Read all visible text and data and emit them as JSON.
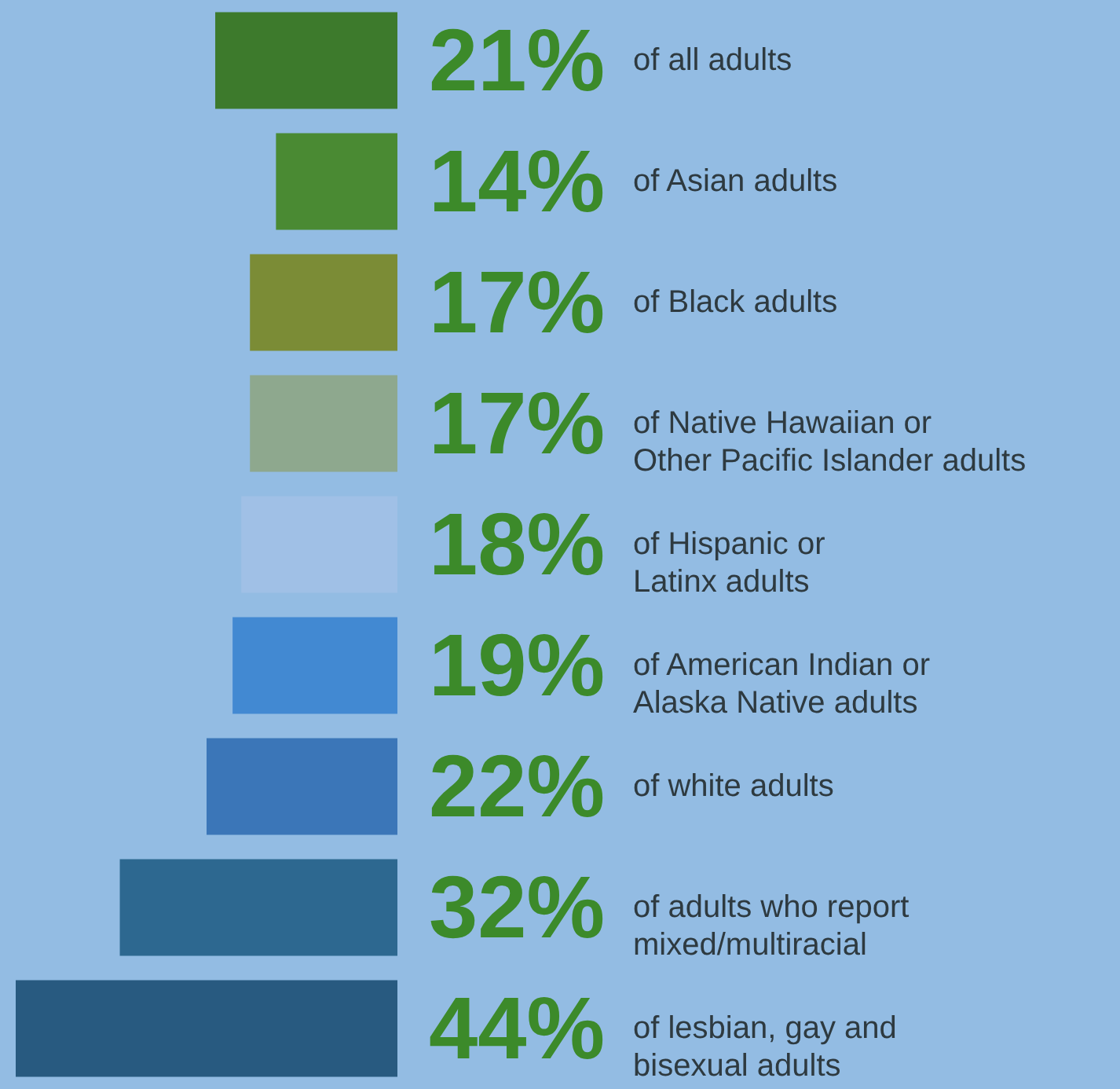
{
  "chart_data": {
    "type": "bar",
    "orientation": "horizontal",
    "categories": [
      "of all adults",
      "of Asian adults",
      "of Black adults",
      "of Native Hawaiian or\nOther Pacific Islander adults",
      "of Hispanic or\nLatinx adults",
      "of American Indian or\nAlaska Native adults",
      "of white adults",
      "of adults who report\nmixed/multiracial",
      "of lesbian, gay and\nbisexual adults"
    ],
    "values": [
      21,
      14,
      17,
      17,
      18,
      19,
      22,
      32,
      44
    ],
    "colors": [
      "#3d7a2c",
      "#4a8a33",
      "#7b8c36",
      "#8ea88e",
      "#a0c0e6",
      "#4289d2",
      "#3b76b8",
      "#2d6890",
      "#285a80"
    ],
    "value_labels": [
      "21%",
      "14%",
      "17%",
      "17%",
      "18%",
      "19%",
      "22%",
      "32%",
      "44%"
    ]
  }
}
